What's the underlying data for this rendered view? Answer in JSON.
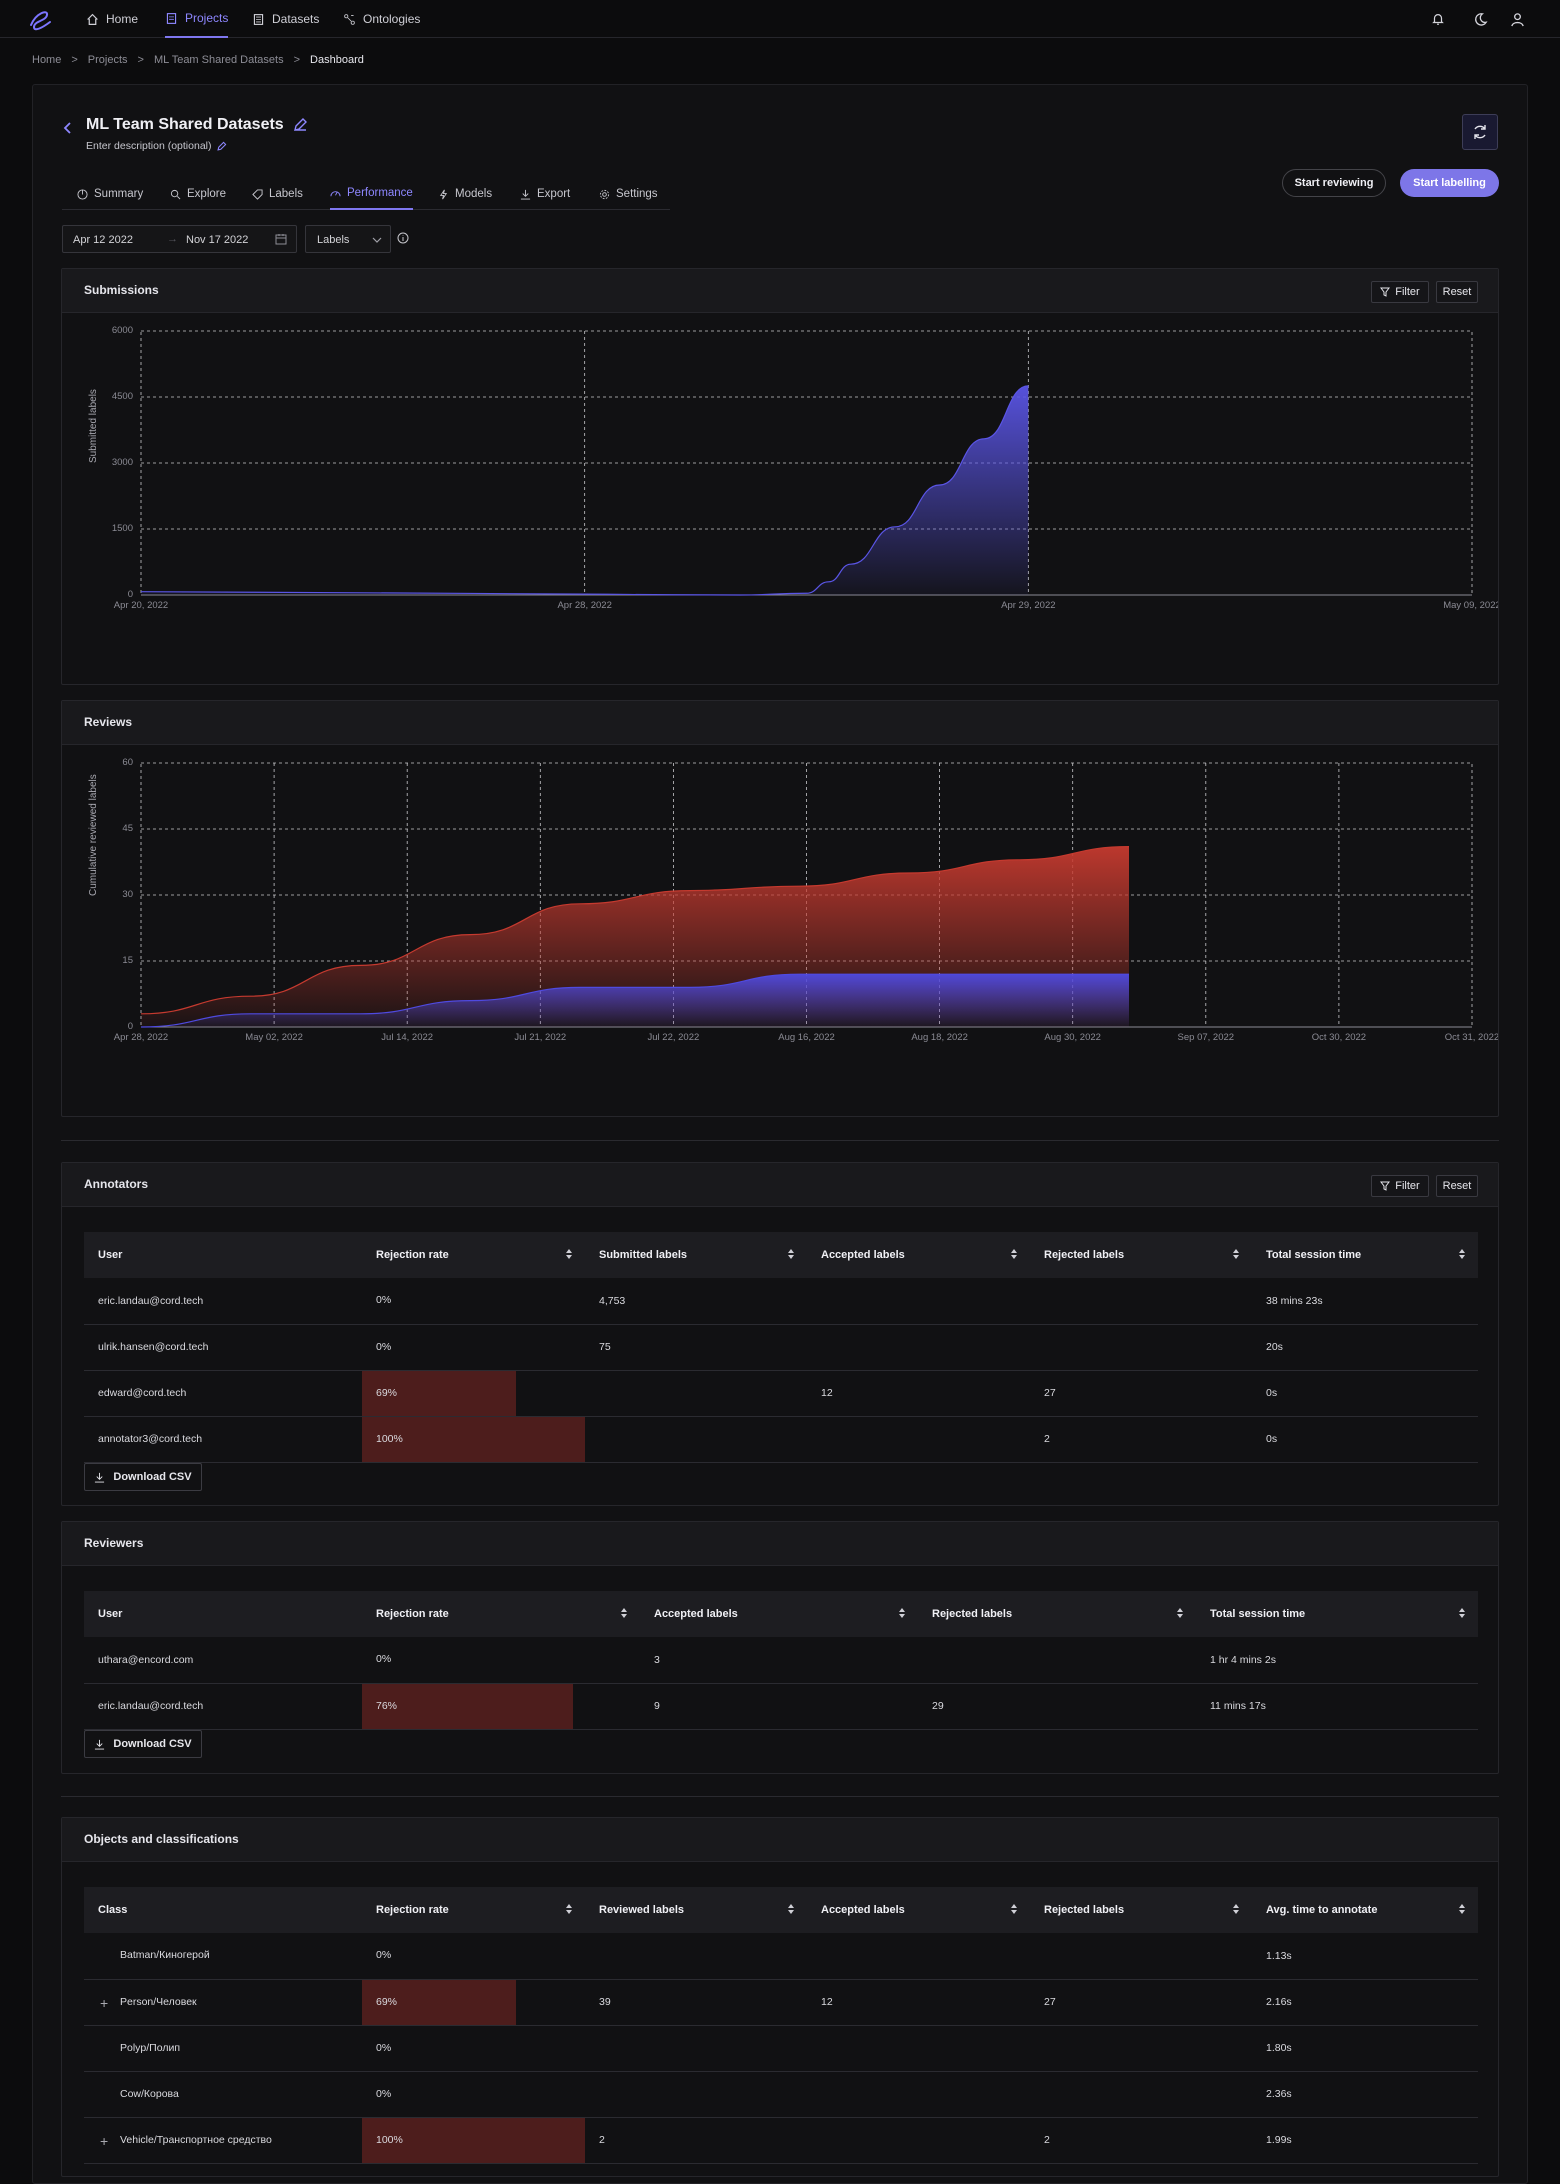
{
  "nav": {
    "items": [
      {
        "label": "Home",
        "icon": "home-icon"
      },
      {
        "label": "Projects",
        "icon": "projects-icon"
      },
      {
        "label": "Datasets",
        "icon": "datasets-icon"
      },
      {
        "label": "Ontologies",
        "icon": "ontologies-icon"
      }
    ],
    "active": "Projects"
  },
  "breadcrumbs": [
    "Home",
    ">",
    "Projects",
    ">",
    "ML Team Shared Datasets",
    ">",
    "Dashboard"
  ],
  "project": {
    "title": "ML Team Shared Datasets",
    "description": "Enter description (optional)"
  },
  "tabs": [
    "Summary",
    "Explore",
    "Labels",
    "Performance",
    "Models",
    "Export",
    "Settings"
  ],
  "actions": {
    "start_reviewing": "Start reviewing",
    "start_labelling": "Start labelling"
  },
  "filters": {
    "start_date": "Apr 12 2022",
    "end_date": "Nov 17 2022",
    "selected": "Labels"
  },
  "cards": {
    "submissions": {
      "title": "Submissions",
      "filter": "Filter",
      "reset": "Reset"
    },
    "reviews": {
      "title": "Reviews"
    },
    "annotators": {
      "title": "Annotators",
      "filter": "Filter",
      "reset": "Reset"
    },
    "reviewers": {
      "title": "Reviewers"
    },
    "objects": {
      "title": "Objects and classifications"
    }
  },
  "chart_data": [
    {
      "type": "area",
      "title": "Submissions",
      "ylabel": "Submitted labels",
      "ylim": [
        0,
        6000
      ],
      "yticks": [
        "0",
        "1500",
        "3000",
        "4500",
        "6000"
      ],
      "xticks": [
        "Apr 20, 2022",
        "Apr 28, 2022",
        "Apr 29, 2022",
        "May 09, 2022"
      ],
      "series": [
        {
          "x": [
            0,
            0.5,
            1.0,
            1.2,
            1.35,
            1.5,
            1.55,
            1.6,
            1.7,
            1.8,
            1.9,
            2.0
          ],
          "values": [
            75,
            50,
            20,
            5,
            0,
            40,
            300,
            700,
            1550,
            2500,
            3550,
            4753
          ]
        }
      ],
      "color": "#5a55e6"
    },
    {
      "type": "area",
      "title": "Reviews",
      "ylabel": "Cumulative reviewed labels",
      "ylim": [
        0,
        60
      ],
      "yticks": [
        "0",
        "15",
        "30",
        "45",
        "60"
      ],
      "xticks": [
        "Apr 28, 2022",
        "May 02, 2022",
        "Jul 14, 2022",
        "Jul 21, 2022",
        "Jul 22, 2022",
        "Aug 16, 2022",
        "Aug 18, 2022",
        "Aug 30, 2022",
        "Sep 07, 2022",
        "Oct 30, 2022",
        "Oct 31, 2022"
      ],
      "series": [
        {
          "values": [
            3,
            7,
            14,
            21,
            28,
            31,
            32,
            35,
            38,
            41
          ]
        },
        {
          "values": [
            0,
            3,
            3,
            6,
            9,
            9,
            12,
            12,
            12,
            12
          ]
        }
      ],
      "colors": [
        "#c53a2f",
        "#4f4ae0"
      ]
    }
  ],
  "annotators": {
    "columns": [
      "User",
      "Rejection rate",
      "Submitted labels",
      "Accepted labels",
      "Rejected labels",
      "Total session time"
    ],
    "rows": [
      {
        "user": "eric.landau@cord.tech",
        "rate": "0%",
        "rate_value": 0,
        "submitted": "4,753",
        "accepted": "",
        "rejected": "",
        "time": "38 mins 23s"
      },
      {
        "user": "ulrik.hansen@cord.tech",
        "rate": "0%",
        "rate_value": 0,
        "submitted": "75",
        "accepted": "",
        "rejected": "",
        "time": "20s"
      },
      {
        "user": "edward@cord.tech",
        "rate": "69%",
        "rate_value": 69,
        "submitted": "",
        "accepted": "12",
        "rejected": "27",
        "time": "0s"
      },
      {
        "user": "annotator3@cord.tech",
        "rate": "100%",
        "rate_value": 100,
        "submitted": "",
        "accepted": "",
        "rejected": "2",
        "time": "0s"
      }
    ],
    "download": "Download CSV"
  },
  "reviewers": {
    "columns": [
      "User",
      "Rejection rate",
      "Accepted labels",
      "Rejected labels",
      "Total session time"
    ],
    "rows": [
      {
        "user": "uthara@encord.com",
        "rate": "0%",
        "rate_value": 0,
        "accepted": "3",
        "rejected": "",
        "time": "1 hr 4 mins 2s"
      },
      {
        "user": "eric.landau@cord.tech",
        "rate": "76%",
        "rate_value": 76,
        "accepted": "9",
        "rejected": "29",
        "time": "11 mins 17s"
      }
    ],
    "download": "Download CSV"
  },
  "objects": {
    "columns": [
      "Class",
      "Rejection rate",
      "Reviewed labels",
      "Accepted labels",
      "Rejected labels",
      "Avg. time to annotate"
    ],
    "rows": [
      {
        "expand": "",
        "name": "Batman/Киногерой",
        "rate": "0%",
        "rate_value": 0,
        "reviewed": "",
        "accepted": "",
        "rejected": "",
        "time": "1.13s"
      },
      {
        "expand": "+",
        "name": "Person/Человек",
        "rate": "69%",
        "rate_value": 69,
        "reviewed": "39",
        "accepted": "12",
        "rejected": "27",
        "time": "2.16s"
      },
      {
        "expand": "",
        "name": "Polyp/Полип",
        "rate": "0%",
        "rate_value": 0,
        "reviewed": "",
        "accepted": "",
        "rejected": "",
        "time": "1.80s"
      },
      {
        "expand": "",
        "name": "Cow/Корова",
        "rate": "0%",
        "rate_value": 0,
        "reviewed": "",
        "accepted": "",
        "rejected": "",
        "time": "2.36s"
      },
      {
        "expand": "+",
        "name": "Vehicle/Транспортное средство",
        "rate": "100%",
        "rate_value": 100,
        "reviewed": "2",
        "accepted": "",
        "rejected": "2",
        "time": "1.99s"
      }
    ]
  }
}
